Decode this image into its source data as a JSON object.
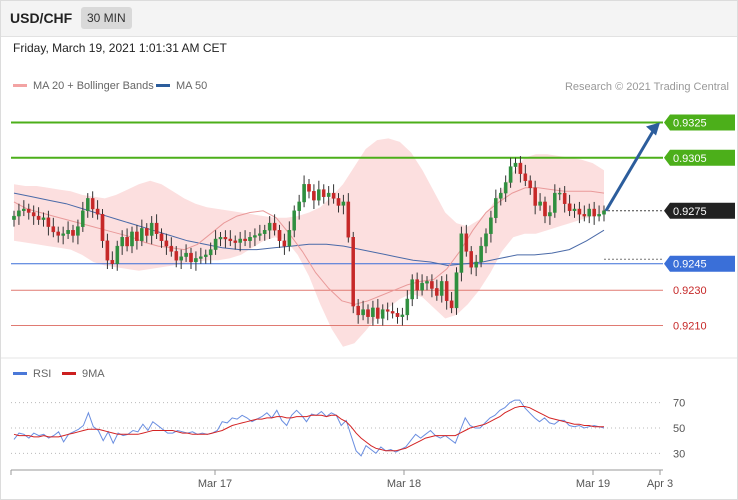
{
  "header": {
    "symbol": "USD/CHF",
    "timeframe": "30 MIN",
    "datetime": "Friday, March 19, 2021 1:01:31 AM CET"
  },
  "legend": {
    "ma20_label": "MA 20 + Bollinger Bands",
    "ma50_label": "MA 50",
    "credit": "Research © 2021 Trading Central",
    "rsi_label": "RSI",
    "ma9_label": "9MA"
  },
  "colors": {
    "bull": "#2f8f3f",
    "bear": "#c62828",
    "band": "#fbd9d9",
    "ma20": "#e99a9a",
    "ma50": "#4a6aa8",
    "resistance": "#4caf1a",
    "support": "#3a6fd8",
    "minor": "#e07a72",
    "arrow": "#2c5d9c",
    "last": "#222222"
  },
  "chart_data": [
    {
      "type": "candlestick",
      "ylim": [
        0.9195,
        0.934
      ],
      "x_ticks": [
        "Mar 17",
        "Mar 18",
        "Mar 19",
        "Apr 3"
      ],
      "levels": [
        {
          "value": 0.9325,
          "label": "0.9325",
          "kind": "resistance"
        },
        {
          "value": 0.9305,
          "label": "0.9305",
          "kind": "resistance"
        },
        {
          "value": 0.9275,
          "label": "0.9275",
          "kind": "last"
        },
        {
          "value": 0.9245,
          "label": "0.9245",
          "kind": "support"
        },
        {
          "value": 0.923,
          "label": "0.9230",
          "kind": "minor"
        },
        {
          "value": 0.921,
          "label": "0.9210",
          "kind": "minor"
        }
      ],
      "close": [
        0.9272,
        0.9275,
        0.9276,
        0.9274,
        0.9272,
        0.927,
        0.9271,
        0.9266,
        0.9263,
        0.9261,
        0.9262,
        0.9264,
        0.9261,
        0.9266,
        0.9275,
        0.9282,
        0.9276,
        0.9273,
        0.9258,
        0.9247,
        0.9245,
        0.9255,
        0.926,
        0.9255,
        0.9263,
        0.9258,
        0.9265,
        0.9261,
        0.9268,
        0.9262,
        0.9258,
        0.9255,
        0.9252,
        0.9247,
        0.9249,
        0.9251,
        0.9246,
        0.9248,
        0.9249,
        0.925,
        0.9253,
        0.9259,
        0.926,
        0.9259,
        0.9258,
        0.9257,
        0.9259,
        0.9258,
        0.926,
        0.9261,
        0.9262,
        0.9264,
        0.9268,
        0.9264,
        0.9258,
        0.9255,
        0.9264,
        0.9275,
        0.928,
        0.929,
        0.9286,
        0.9281,
        0.9287,
        0.9283,
        0.9285,
        0.9282,
        0.9278,
        0.928,
        0.926,
        0.9221,
        0.9216,
        0.9219,
        0.9215,
        0.922,
        0.9214,
        0.9219,
        0.9218,
        0.9217,
        0.9215,
        0.9216,
        0.9225,
        0.9236,
        0.923,
        0.9234,
        0.9235,
        0.9231,
        0.9227,
        0.9235,
        0.9224,
        0.922,
        0.924,
        0.9262,
        0.9252,
        0.9243,
        0.9246,
        0.9255,
        0.9262,
        0.9271,
        0.9282,
        0.9285,
        0.9291,
        0.93,
        0.9302,
        0.9296,
        0.9292,
        0.9288,
        0.9278,
        0.928,
        0.9272,
        0.9274,
        0.9285,
        0.9285,
        0.9279,
        0.9275,
        0.9276,
        0.9273,
        0.9272,
        0.9276,
        0.9272,
        0.9273,
        0.9275
      ],
      "ma20_band": {
        "upper": [
          0.929,
          0.9289,
          0.9289,
          0.9288,
          0.9287,
          0.9286,
          0.9284,
          0.9283,
          0.9282,
          0.9284,
          0.9287,
          0.929,
          0.9292,
          0.929,
          0.9286,
          0.9282,
          0.9279,
          0.9277,
          0.9276,
          0.9275,
          0.9274,
          0.9273,
          0.9272,
          0.9271,
          0.9271,
          0.9272,
          0.9274,
          0.9277,
          0.9283,
          0.929,
          0.93,
          0.931,
          0.9315,
          0.9316,
          0.9314,
          0.9308,
          0.9298,
          0.9286,
          0.9274,
          0.9268,
          0.9266,
          0.927,
          0.9277,
          0.9287,
          0.9297,
          0.9305,
          0.9307,
          0.9307,
          0.9306,
          0.9305,
          0.9304,
          0.9302,
          0.9298
        ],
        "lower": [
          0.9258,
          0.9257,
          0.9256,
          0.9255,
          0.9254,
          0.9253,
          0.925,
          0.9246,
          0.9244,
          0.9243,
          0.9242,
          0.9241,
          0.9242,
          0.9243,
          0.9244,
          0.9245,
          0.9246,
          0.9247,
          0.9247,
          0.9248,
          0.925,
          0.9254,
          0.9258,
          0.926,
          0.9258,
          0.925,
          0.9238,
          0.9222,
          0.9208,
          0.9198,
          0.92,
          0.9207,
          0.9215,
          0.922,
          0.9225,
          0.9228,
          0.9226,
          0.922,
          0.9214,
          0.9216,
          0.9222,
          0.923,
          0.924,
          0.9252,
          0.926,
          0.9262,
          0.9262,
          0.9264,
          0.9266,
          0.9268,
          0.927,
          0.9272,
          0.9274
        ]
      },
      "ma20": [
        0.928,
        0.9276,
        0.9274,
        0.9272,
        0.927,
        0.9268,
        0.9266,
        0.9264,
        0.9262,
        0.926,
        0.9257,
        0.9255,
        0.9254,
        0.9253,
        0.9256,
        0.9262,
        0.9268,
        0.9272,
        0.9274,
        0.9275,
        0.9271,
        0.9262,
        0.9252,
        0.924,
        0.9231,
        0.9224,
        0.9222,
        0.9224,
        0.9227,
        0.923,
        0.9233,
        0.9235,
        0.9236,
        0.9242,
        0.9252,
        0.9264,
        0.9274,
        0.928,
        0.9285,
        0.9288,
        0.9288,
        0.9287,
        0.9286,
        0.9286,
        0.9286,
        0.9285
      ],
      "ma50": [
        0.9285,
        0.9283,
        0.9281,
        0.9279,
        0.9276,
        0.9273,
        0.927,
        0.9267,
        0.9264,
        0.9261,
        0.9258,
        0.9256,
        0.9254,
        0.9253,
        0.9253,
        0.9254,
        0.9255,
        0.9256,
        0.9256,
        0.9255,
        0.9253,
        0.9251,
        0.9249,
        0.9247,
        0.9246,
        0.9244,
        0.9245,
        0.9246,
        0.9248,
        0.925,
        0.925,
        0.9251,
        0.9253,
        0.9258,
        0.9264
      ],
      "forecast_arrow": {
        "from": 0.9275,
        "to": 0.9325
      }
    },
    {
      "type": "line",
      "title": "RSI",
      "ylim": [
        20,
        80
      ],
      "y_ticks": [
        70,
        50,
        30
      ],
      "series": [
        {
          "name": "RSI",
          "values": [
            41,
            46,
            45,
            42,
            46,
            44,
            45,
            42,
            44,
            47,
            39,
            45,
            47,
            49,
            52,
            62,
            51,
            48,
            40,
            47,
            38,
            46,
            44,
            45,
            48,
            47,
            53,
            48,
            55,
            52,
            49,
            46,
            46,
            48,
            47,
            46,
            47,
            45,
            46,
            45,
            46,
            48,
            55,
            54,
            58,
            57,
            60,
            58,
            55,
            57,
            59,
            62,
            58,
            64,
            56,
            52,
            60,
            64,
            60,
            55,
            61,
            60,
            63,
            59,
            62,
            60,
            52,
            56,
            44,
            32,
            28,
            36,
            33,
            30,
            35,
            32,
            33,
            31,
            33,
            35,
            40,
            45,
            42,
            45,
            48,
            44,
            42,
            44,
            41,
            38,
            48,
            58,
            52,
            50,
            50,
            54,
            58,
            60,
            64,
            66,
            70,
            72,
            72,
            66,
            62,
            58,
            55,
            58,
            54,
            53,
            56,
            56,
            52,
            51,
            52,
            50,
            51,
            52,
            51,
            50
          ]
        },
        {
          "name": "9MA",
          "values": [
            45,
            44,
            44,
            44,
            43,
            43,
            44,
            43,
            43,
            43,
            44,
            45,
            46,
            47,
            48,
            49,
            49,
            49,
            48,
            47,
            46,
            45,
            45,
            45,
            45,
            45,
            46,
            47,
            48,
            48,
            48,
            48,
            48,
            47,
            46,
            46,
            45,
            45,
            45,
            45,
            46,
            47,
            48,
            50,
            52,
            53,
            54,
            55,
            56,
            57,
            57,
            58,
            58,
            59,
            59,
            58,
            58,
            59,
            59,
            59,
            60,
            60,
            60,
            59,
            60,
            60,
            57,
            55,
            51,
            46,
            42,
            39,
            36,
            34,
            33,
            32,
            32,
            32,
            33,
            34,
            36,
            38,
            40,
            42,
            43,
            44,
            44,
            44,
            44,
            44,
            46,
            48,
            50,
            51,
            52,
            53,
            55,
            57,
            59,
            62,
            64,
            66,
            67,
            67,
            66,
            64,
            62,
            60,
            58,
            57,
            56,
            55,
            54,
            53,
            53,
            52,
            52,
            51,
            51,
            51
          ]
        }
      ]
    }
  ]
}
